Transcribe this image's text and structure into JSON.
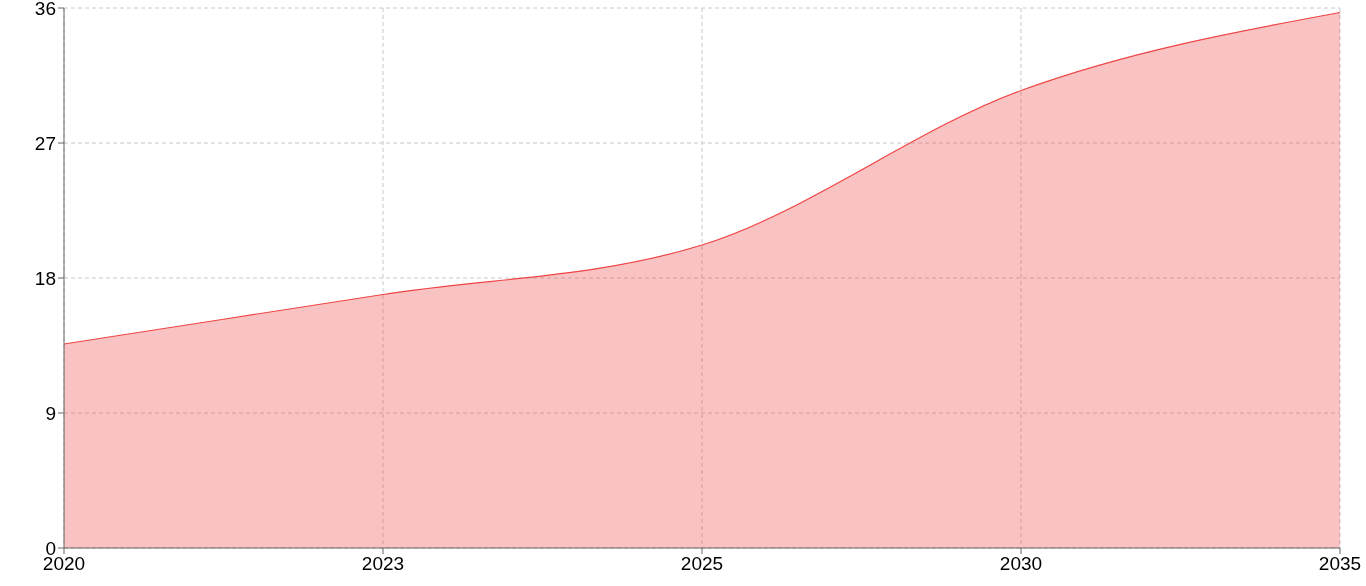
{
  "chart_data": {
    "type": "area",
    "categories": [
      "2020",
      "2023",
      "2025",
      "2030",
      "2035"
    ],
    "values": [
      13.6,
      16.9,
      20.2,
      30.5,
      35.7
    ],
    "color": "#ee4444",
    "ylim": [
      0,
      36
    ],
    "yticks": [
      0,
      9,
      18,
      27,
      36
    ],
    "grid": true
  }
}
